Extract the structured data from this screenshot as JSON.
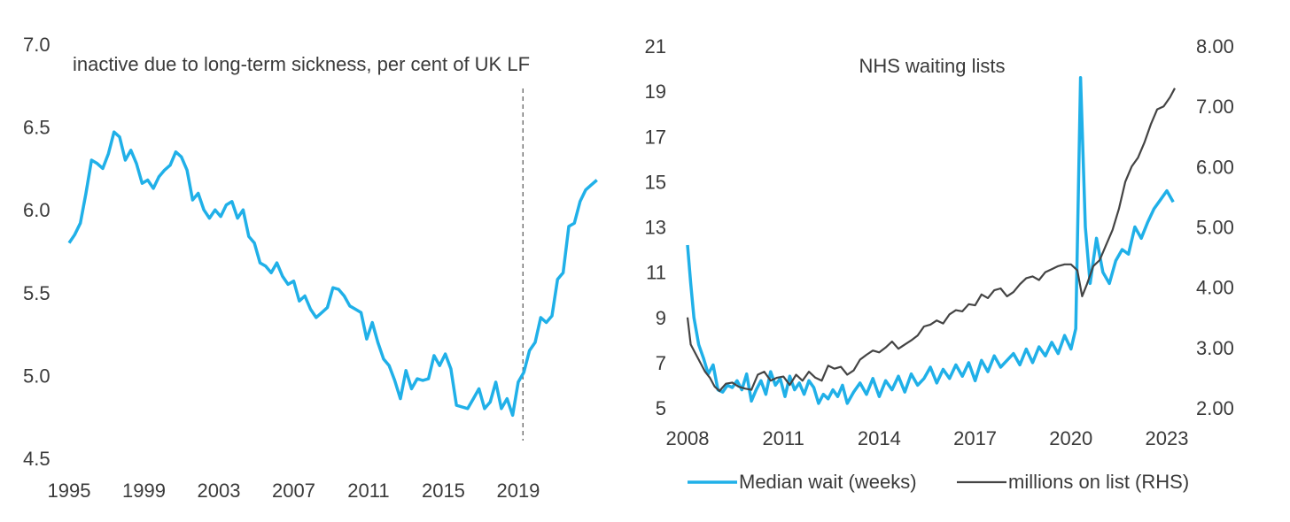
{
  "chart_data": [
    {
      "type": "line",
      "title": "inactive due to long-term sickness, per cent of UK LF",
      "xlabel": "",
      "ylabel": "",
      "xlim": [
        1995,
        2023.5
      ],
      "ylim": [
        4.5,
        7.0
      ],
      "y_ticks": [
        "7.0",
        "6.5",
        "6.0",
        "5.5",
        "5.0",
        "4.5"
      ],
      "x_ticks": [
        "1995",
        "1999",
        "2003",
        "2007",
        "2011",
        "2015",
        "2019"
      ],
      "vline_x": 2019.25,
      "colors": {
        "line": "#20b0e8",
        "vline": "#555555"
      },
      "series": [
        {
          "color": "#20b0e8",
          "x": [
            1995.0,
            1995.3,
            1995.6,
            1995.9,
            1996.2,
            1996.5,
            1996.8,
            1997.1,
            1997.4,
            1997.7,
            1998.0,
            1998.3,
            1998.6,
            1998.9,
            1999.2,
            1999.5,
            1999.8,
            2000.1,
            2000.4,
            2000.7,
            2001.0,
            2001.3,
            2001.6,
            2001.9,
            2002.2,
            2002.5,
            2002.8,
            2003.1,
            2003.4,
            2003.7,
            2004.0,
            2004.3,
            2004.6,
            2004.9,
            2005.2,
            2005.5,
            2005.8,
            2006.1,
            2006.4,
            2006.7,
            2007.0,
            2007.3,
            2007.6,
            2007.9,
            2008.2,
            2008.5,
            2008.8,
            2009.1,
            2009.4,
            2009.7,
            2010.0,
            2010.3,
            2010.6,
            2010.9,
            2011.2,
            2011.5,
            2011.8,
            2012.1,
            2012.4,
            2012.7,
            2013.0,
            2013.3,
            2013.6,
            2013.9,
            2014.2,
            2014.5,
            2014.8,
            2015.1,
            2015.4,
            2015.7,
            2016.0,
            2016.3,
            2016.6,
            2016.9,
            2017.2,
            2017.5,
            2017.8,
            2018.1,
            2018.4,
            2018.7,
            2019.0,
            2019.3,
            2019.6,
            2019.9,
            2020.2,
            2020.5,
            2020.8,
            2021.1,
            2021.4,
            2021.7,
            2022.0,
            2022.3,
            2022.6,
            2022.9,
            2023.2
          ],
          "y": [
            5.8,
            5.85,
            5.92,
            6.1,
            6.3,
            6.28,
            6.25,
            6.34,
            6.47,
            6.44,
            6.3,
            6.36,
            6.28,
            6.16,
            6.18,
            6.13,
            6.2,
            6.24,
            6.27,
            6.35,
            6.32,
            6.24,
            6.06,
            6.1,
            6.0,
            5.95,
            6.0,
            5.96,
            6.03,
            6.05,
            5.95,
            6.0,
            5.84,
            5.8,
            5.68,
            5.66,
            5.62,
            5.68,
            5.6,
            5.55,
            5.57,
            5.45,
            5.48,
            5.4,
            5.35,
            5.38,
            5.41,
            5.53,
            5.52,
            5.48,
            5.42,
            5.4,
            5.38,
            5.22,
            5.32,
            5.2,
            5.1,
            5.06,
            4.97,
            4.86,
            5.03,
            4.92,
            4.98,
            4.97,
            4.98,
            5.12,
            5.06,
            5.13,
            5.04,
            4.82,
            4.81,
            4.8,
            4.86,
            4.92,
            4.8,
            4.84,
            4.96,
            4.8,
            4.86,
            4.76,
            4.96,
            5.02,
            5.15,
            5.2,
            5.35,
            5.32,
            5.36,
            5.58,
            5.62,
            5.9,
            5.92,
            6.05,
            6.12,
            6.15,
            6.18
          ]
        }
      ]
    },
    {
      "type": "line",
      "title": "NHS waiting lists",
      "xlabel": "",
      "ylabel": "",
      "xlim": [
        2008,
        2023.5
      ],
      "ylim_left": [
        5,
        21
      ],
      "ylim_right": [
        2.0,
        8.0
      ],
      "y_ticks_left": [
        "21",
        "19",
        "17",
        "15",
        "13",
        "11",
        "9",
        "7",
        "5"
      ],
      "y_ticks_right": [
        "8.00",
        "7.00",
        "6.00",
        "5.00",
        "4.00",
        "3.00",
        "2.00"
      ],
      "x_ticks": [
        "2008",
        "2011",
        "2014",
        "2017",
        "2020",
        "2023"
      ],
      "legend_position": "bottom",
      "series": [
        {
          "name": "Median wait (weeks)",
          "axis": "left",
          "color": "#20b0e8",
          "x": [
            2008.0,
            2008.1,
            2008.2,
            2008.35,
            2008.5,
            2008.65,
            2008.8,
            2008.95,
            2009.1,
            2009.25,
            2009.4,
            2009.55,
            2009.7,
            2009.85,
            2010.0,
            2010.15,
            2010.3,
            2010.45,
            2010.6,
            2010.75,
            2010.9,
            2011.05,
            2011.2,
            2011.35,
            2011.5,
            2011.65,
            2011.8,
            2011.95,
            2012.1,
            2012.25,
            2012.4,
            2012.55,
            2012.7,
            2012.85,
            2013.0,
            2013.2,
            2013.4,
            2013.6,
            2013.8,
            2014.0,
            2014.2,
            2014.4,
            2014.6,
            2014.8,
            2015.0,
            2015.2,
            2015.4,
            2015.6,
            2015.8,
            2016.0,
            2016.2,
            2016.4,
            2016.6,
            2016.8,
            2017.0,
            2017.2,
            2017.4,
            2017.6,
            2017.8,
            2018.0,
            2018.2,
            2018.4,
            2018.6,
            2018.8,
            2019.0,
            2019.2,
            2019.4,
            2019.6,
            2019.8,
            2020.0,
            2020.15,
            2020.3,
            2020.45,
            2020.6,
            2020.8,
            2021.0,
            2021.2,
            2021.4,
            2021.6,
            2021.8,
            2022.0,
            2022.2,
            2022.4,
            2022.6,
            2022.8,
            2023.0,
            2023.2
          ],
          "y": [
            12.2,
            10.5,
            9.0,
            7.8,
            7.2,
            6.5,
            6.9,
            5.8,
            5.7,
            6.0,
            5.9,
            6.2,
            5.8,
            6.5,
            5.3,
            5.8,
            6.2,
            5.6,
            6.6,
            6.0,
            6.3,
            5.5,
            6.4,
            5.8,
            6.1,
            5.6,
            6.2,
            5.9,
            5.2,
            5.6,
            5.4,
            5.8,
            5.5,
            6.0,
            5.2,
            5.7,
            6.1,
            5.6,
            6.3,
            5.5,
            6.2,
            5.8,
            6.4,
            5.7,
            6.5,
            6.0,
            6.3,
            6.8,
            6.1,
            6.7,
            6.3,
            6.9,
            6.4,
            7.0,
            6.2,
            7.1,
            6.6,
            7.3,
            6.8,
            7.1,
            7.4,
            6.9,
            7.6,
            7.0,
            7.7,
            7.3,
            7.9,
            7.4,
            8.2,
            7.6,
            8.5,
            19.6,
            13.0,
            10.5,
            12.5,
            11.0,
            10.5,
            11.5,
            12.0,
            11.8,
            13.0,
            12.5,
            13.2,
            13.8,
            14.2,
            14.6,
            14.1
          ]
        },
        {
          "name": "millions on list (RHS)",
          "axis": "right",
          "color": "#444444",
          "x": [
            2008.0,
            2008.1,
            2008.25,
            2008.4,
            2008.55,
            2008.7,
            2008.85,
            2009.0,
            2009.2,
            2009.4,
            2009.6,
            2009.8,
            2010.0,
            2010.2,
            2010.4,
            2010.6,
            2010.8,
            2011.0,
            2011.2,
            2011.4,
            2011.6,
            2011.8,
            2012.0,
            2012.2,
            2012.4,
            2012.6,
            2012.8,
            2013.0,
            2013.2,
            2013.4,
            2013.6,
            2013.8,
            2014.0,
            2014.2,
            2014.4,
            2014.6,
            2014.8,
            2015.0,
            2015.2,
            2015.4,
            2015.6,
            2015.8,
            2016.0,
            2016.2,
            2016.4,
            2016.6,
            2016.8,
            2017.0,
            2017.2,
            2017.4,
            2017.6,
            2017.8,
            2018.0,
            2018.2,
            2018.4,
            2018.6,
            2018.8,
            2019.0,
            2019.2,
            2019.4,
            2019.6,
            2019.8,
            2020.0,
            2020.2,
            2020.35,
            2020.5,
            2020.7,
            2020.9,
            2021.1,
            2021.3,
            2021.5,
            2021.7,
            2021.9,
            2022.1,
            2022.3,
            2022.5,
            2022.7,
            2022.9,
            2023.1,
            2023.25
          ],
          "y": [
            3.5,
            3.05,
            2.9,
            2.75,
            2.6,
            2.5,
            2.35,
            2.28,
            2.4,
            2.42,
            2.35,
            2.32,
            2.3,
            2.55,
            2.6,
            2.45,
            2.5,
            2.52,
            2.38,
            2.55,
            2.45,
            2.6,
            2.5,
            2.45,
            2.7,
            2.65,
            2.68,
            2.55,
            2.62,
            2.8,
            2.88,
            2.95,
            2.92,
            3.0,
            3.1,
            2.98,
            3.05,
            3.12,
            3.2,
            3.35,
            3.38,
            3.45,
            3.4,
            3.55,
            3.62,
            3.6,
            3.72,
            3.7,
            3.88,
            3.82,
            3.95,
            3.98,
            3.85,
            3.92,
            4.05,
            4.15,
            4.18,
            4.12,
            4.25,
            4.3,
            4.35,
            4.38,
            4.38,
            4.28,
            3.85,
            4.05,
            4.35,
            4.45,
            4.7,
            4.95,
            5.3,
            5.75,
            6.0,
            6.15,
            6.4,
            6.7,
            6.95,
            7.0,
            7.15,
            7.3
          ]
        }
      ]
    }
  ]
}
